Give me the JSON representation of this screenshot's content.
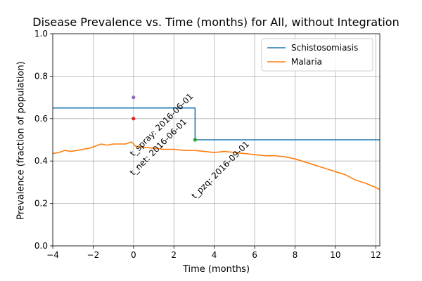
{
  "chart_data": {
    "type": "line",
    "title": "Disease Prevalence vs. Time (months) for All, without Integration",
    "xlabel": "Time (months)",
    "ylabel": "Prevalence (fraction of population)",
    "xlim": [
      -4,
      12.2
    ],
    "ylim": [
      0.0,
      1.0
    ],
    "xticks": [
      -4,
      -2,
      0,
      2,
      4,
      6,
      8,
      10,
      12
    ],
    "xtick_labels": [
      "−4",
      "−2",
      "0",
      "2",
      "4",
      "6",
      "8",
      "10",
      "12"
    ],
    "yticks": [
      0.0,
      0.2,
      0.4,
      0.6,
      0.8,
      1.0
    ],
    "ytick_labels": [
      "0.0",
      "0.2",
      "0.4",
      "0.6",
      "0.8",
      "1.0"
    ],
    "grid": true,
    "legend_position": "top-right",
    "series": [
      {
        "name": "Schistosomiasis",
        "color": "#1f77b4",
        "step": true,
        "x": [
          -4,
          3.05,
          3.05,
          12.2
        ],
        "y": [
          0.65,
          0.65,
          0.5,
          0.5
        ]
      },
      {
        "name": "Malaria",
        "color": "#ff7f0e",
        "x": [
          -4.0,
          -3.7,
          -3.4,
          -3.1,
          -2.8,
          -2.5,
          -2.2,
          -1.9,
          -1.6,
          -1.3,
          -1.0,
          -0.7,
          -0.4,
          -0.1,
          0.0,
          0.1,
          0.5,
          1.0,
          1.5,
          2.0,
          2.5,
          3.0,
          3.5,
          4.0,
          4.5,
          5.0,
          5.5,
          6.0,
          6.5,
          7.0,
          7.5,
          8.0,
          8.5,
          9.0,
          9.5,
          10.0,
          10.5,
          11.0,
          11.5,
          12.0,
          12.2
        ],
        "y": [
          0.435,
          0.44,
          0.45,
          0.445,
          0.45,
          0.455,
          0.46,
          0.47,
          0.48,
          0.475,
          0.48,
          0.48,
          0.48,
          0.49,
          0.48,
          0.47,
          0.465,
          0.46,
          0.455,
          0.455,
          0.45,
          0.45,
          0.445,
          0.44,
          0.445,
          0.44,
          0.435,
          0.43,
          0.425,
          0.425,
          0.42,
          0.41,
          0.395,
          0.38,
          0.365,
          0.35,
          0.335,
          0.31,
          0.295,
          0.275,
          0.265
        ]
      }
    ],
    "markers": [
      {
        "x": 0,
        "y": 0.7,
        "color": "#9467bd"
      },
      {
        "x": 0,
        "y": 0.6,
        "color": "#d62728"
      },
      {
        "x": 3.05,
        "y": 0.5,
        "color": "#2ca02c"
      }
    ],
    "annotations": [
      {
        "text": "t_spray: 2016-06-01",
        "x": 0,
        "y": 0.42
      },
      {
        "text": "t_net: 2016-06-01",
        "x": 0,
        "y": 0.33
      },
      {
        "text": "t_pzq: 2016-09-01",
        "x": 3.05,
        "y": 0.22
      }
    ]
  }
}
